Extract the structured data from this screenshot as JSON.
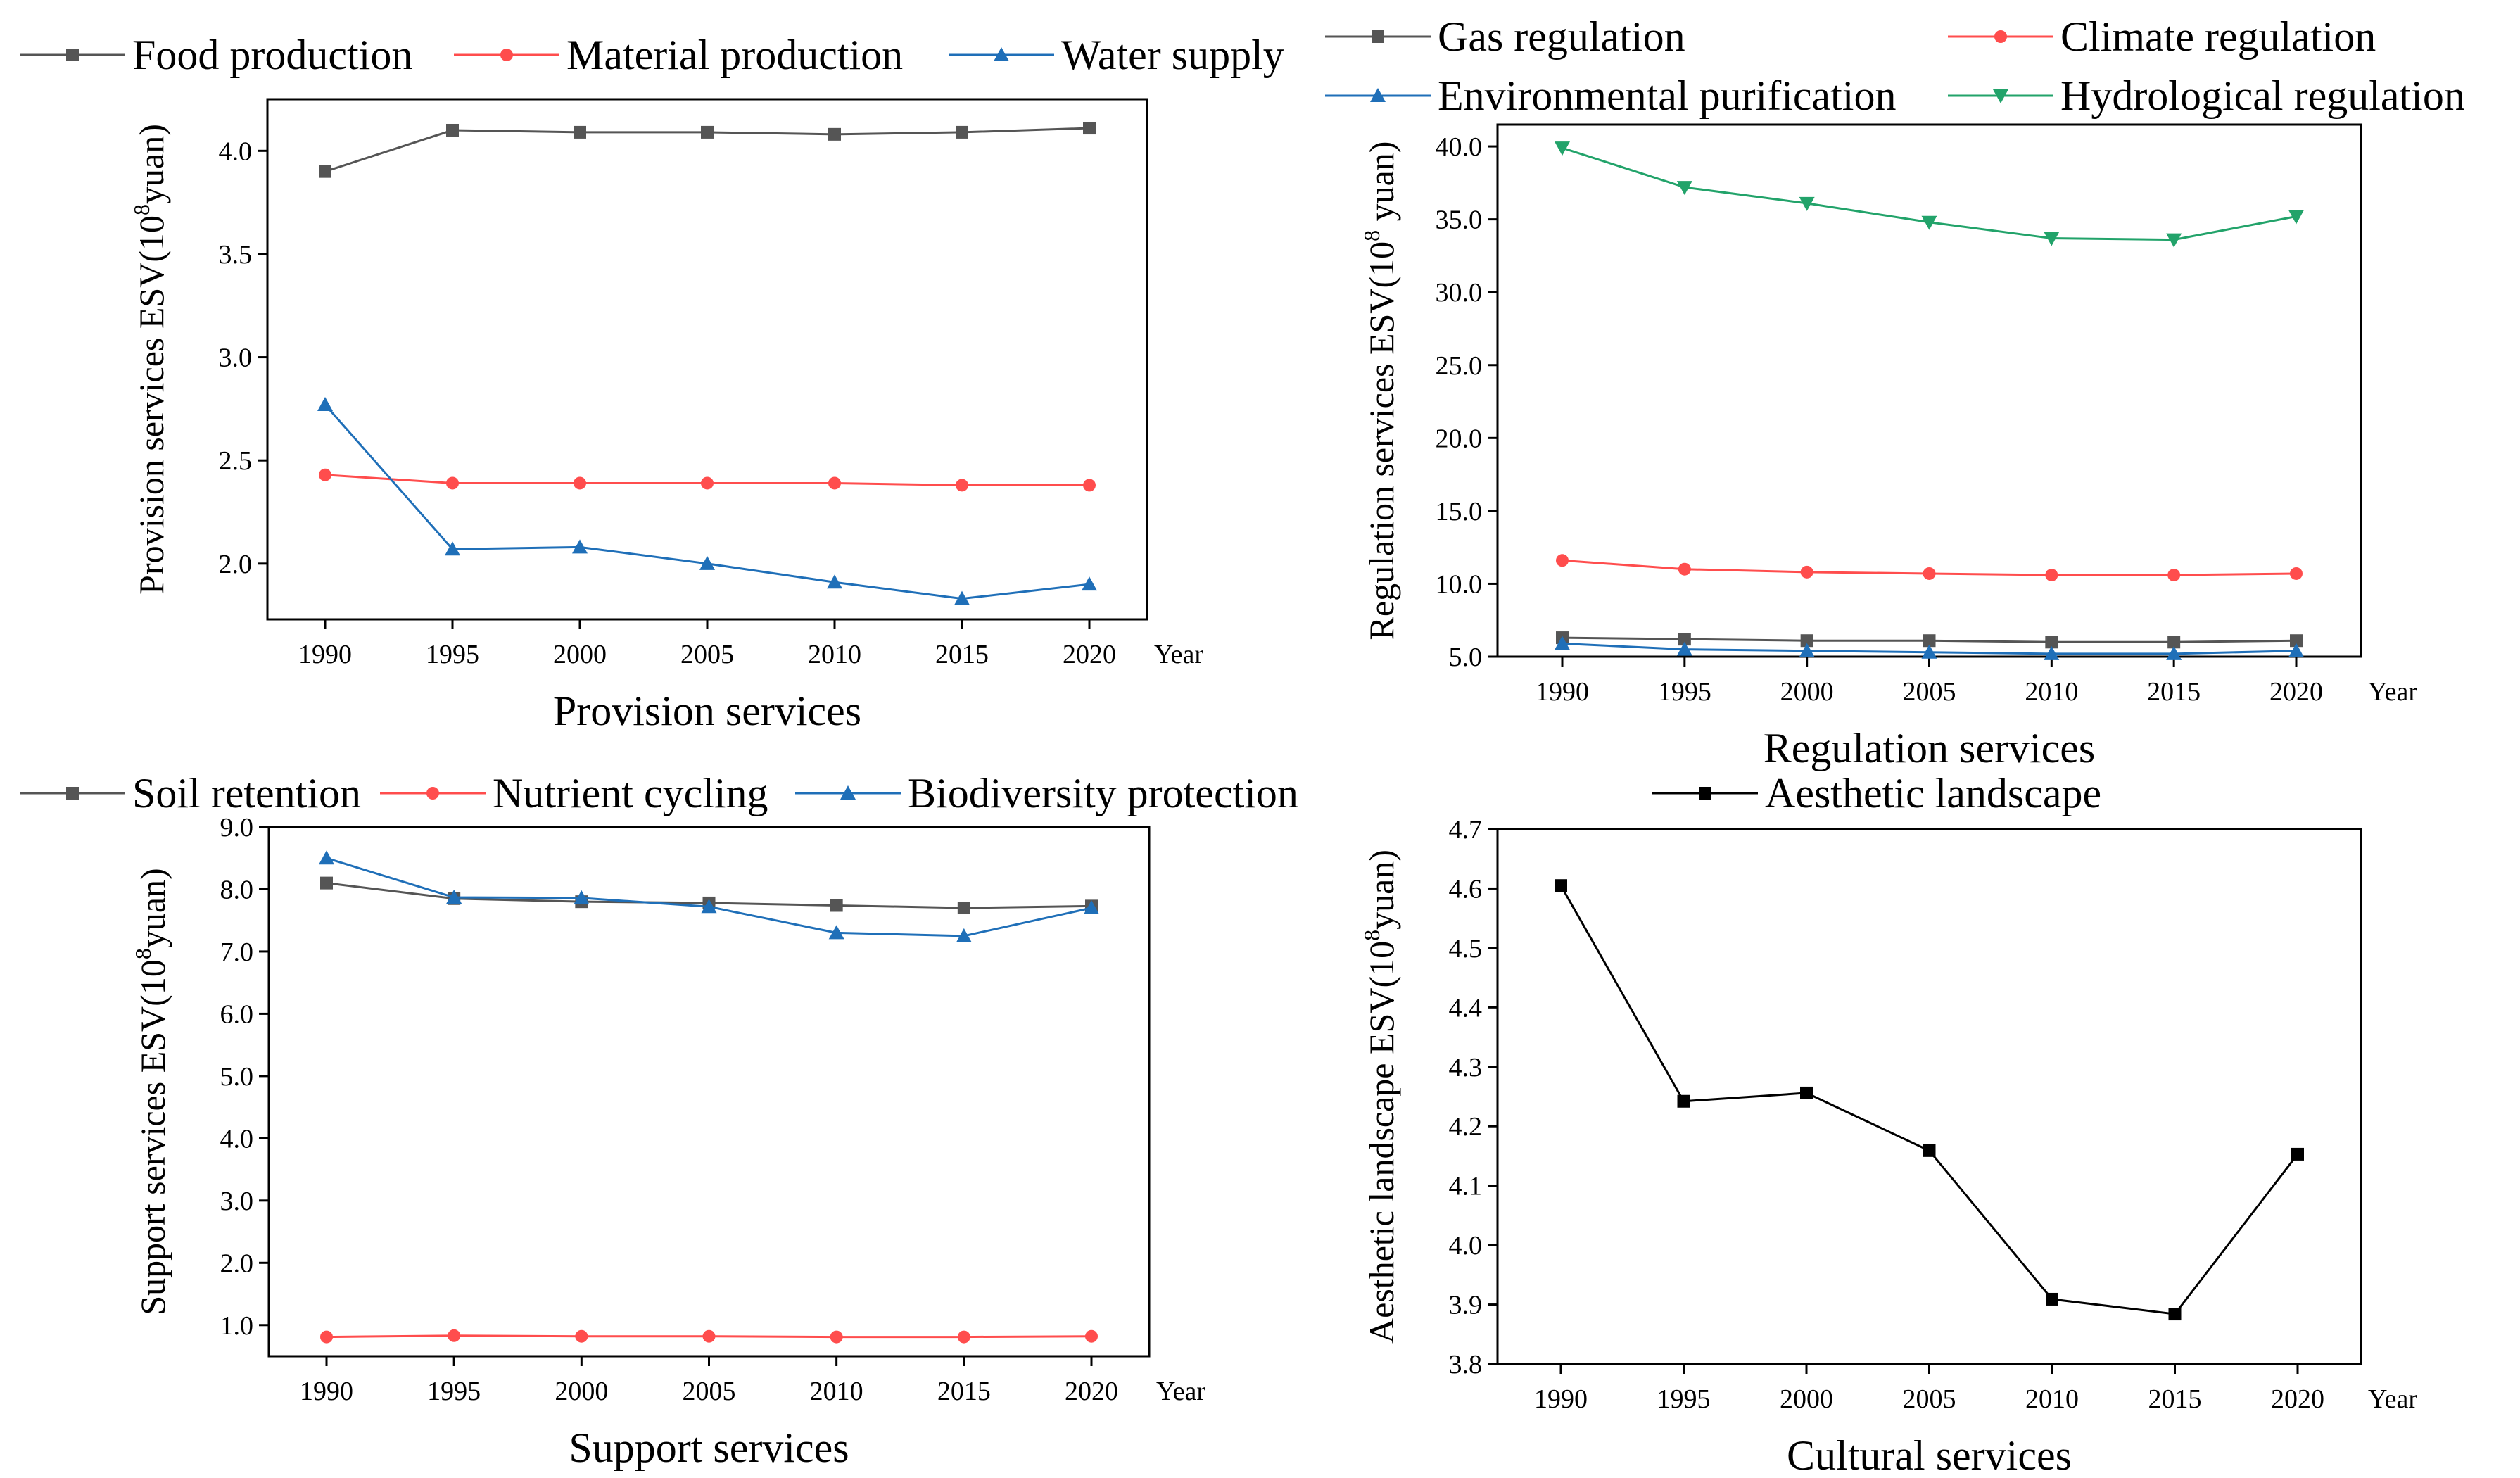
{
  "chart_data": [
    {
      "type": "line",
      "title": "Provision services",
      "xlabel": "Year",
      "ylabel": "Provision services ESV(10⁸yuan)",
      "ylabel_parts": [
        "Provision services ESV(10",
        "8",
        "yuan)"
      ],
      "x": [
        1990,
        1995,
        2000,
        2005,
        2010,
        2015,
        2020
      ],
      "x_tick_labels": [
        "1990",
        "1995",
        "2000",
        "2005",
        "2010",
        "2015",
        "2020"
      ],
      "ylim": [
        1.73,
        4.25
      ],
      "y_ticks": [
        2.0,
        2.5,
        3.0,
        3.5,
        4.0
      ],
      "y_tick_labels": [
        "2.0",
        "2.5",
        "3.0",
        "3.5",
        "4.0"
      ],
      "legend": "top",
      "series": [
        {
          "name": "Food production",
          "color": "#555555",
          "marker": "square",
          "values": [
            3.9,
            4.1,
            4.09,
            4.09,
            4.08,
            4.09,
            4.11
          ]
        },
        {
          "name": "Material production",
          "color": "#ff4d4d",
          "marker": "circle",
          "values": [
            2.43,
            2.39,
            2.39,
            2.39,
            2.39,
            2.38,
            2.38
          ]
        },
        {
          "name": "Water supply",
          "color": "#1f6fb8",
          "marker": "triangle-up",
          "values": [
            2.77,
            2.07,
            2.08,
            2.0,
            1.91,
            1.83,
            1.9
          ]
        }
      ]
    },
    {
      "type": "line",
      "title": "Regulation services",
      "xlabel": "Year",
      "ylabel": "Regulation services ESV(10⁸ yuan)",
      "ylabel_parts": [
        "Regulation services ESV(10",
        "8",
        " yuan)"
      ],
      "x": [
        1990,
        1995,
        2000,
        2005,
        2010,
        2015,
        2020
      ],
      "x_tick_labels": [
        "1990",
        "1995",
        "2000",
        "2005",
        "2010",
        "2015",
        "2020"
      ],
      "ylim": [
        5.0,
        41.5
      ],
      "y_ticks": [
        5.0,
        10.0,
        15.0,
        20.0,
        25.0,
        30.0,
        35.0,
        40.0
      ],
      "y_tick_labels": [
        "5.0",
        "10.0",
        "15.0",
        "20.0",
        "25.0",
        "30.0",
        "35.0",
        "40.0"
      ],
      "legend": "top",
      "series": [
        {
          "name": "Gas regulation",
          "color": "#555555",
          "marker": "square",
          "values": [
            6.3,
            6.2,
            6.1,
            6.1,
            6.0,
            6.0,
            6.1
          ]
        },
        {
          "name": "Climate regulation",
          "color": "#ff4d4d",
          "marker": "circle",
          "values": [
            11.6,
            11.0,
            10.8,
            10.7,
            10.6,
            10.6,
            10.7
          ]
        },
        {
          "name": "Environmental purification",
          "color": "#1f6fb8",
          "marker": "triangle-up",
          "values": [
            5.9,
            5.5,
            5.4,
            5.3,
            5.2,
            5.2,
            5.4
          ]
        },
        {
          "name": "Hydrological regulation",
          "color": "#22a36a",
          "marker": "triangle-down",
          "values": [
            39.9,
            37.2,
            36.1,
            34.8,
            33.7,
            33.6,
            35.2
          ]
        }
      ]
    },
    {
      "type": "line",
      "title": "Support  services",
      "xlabel": "Year",
      "ylabel": "Support  services ESV(10⁸yuan)",
      "ylabel_parts": [
        "Support  services ESV(10",
        "8",
        "yuan)"
      ],
      "x": [
        1990,
        1995,
        2000,
        2005,
        2010,
        2015,
        2020
      ],
      "x_tick_labels": [
        "1990",
        "1995",
        "2000",
        "2005",
        "2010",
        "2015",
        "2020"
      ],
      "ylim": [
        0.5,
        9.0
      ],
      "y_ticks": [
        1.0,
        2.0,
        3.0,
        4.0,
        5.0,
        6.0,
        7.0,
        8.0,
        9.0
      ],
      "y_tick_labels": [
        "1.0",
        "2.0",
        "3.0",
        "4.0",
        "5.0",
        "6.0",
        "7.0",
        "8.0",
        "9.0"
      ],
      "legend": "top",
      "series": [
        {
          "name": "Soil retention",
          "color": "#555555",
          "marker": "square",
          "values": [
            8.1,
            7.85,
            7.8,
            7.78,
            7.74,
            7.7,
            7.73
          ]
        },
        {
          "name": "Nutrient cycling",
          "color": "#ff4d4d",
          "marker": "circle",
          "values": [
            0.81,
            0.83,
            0.82,
            0.82,
            0.81,
            0.81,
            0.82
          ]
        },
        {
          "name": "Biodiversity protection",
          "color": "#1f6fb8",
          "marker": "triangle-up",
          "values": [
            8.5,
            7.87,
            7.86,
            7.72,
            7.3,
            7.25,
            7.7
          ]
        }
      ]
    },
    {
      "type": "line",
      "title": "Cultural services",
      "xlabel": "Year",
      "ylabel": "Aesthetic landscape ESV(10⁸yuan)",
      "ylabel_parts": [
        "Aesthetic landscape ESV(10",
        "8",
        "yuan)"
      ],
      "x": [
        1990,
        1995,
        2000,
        2005,
        2010,
        2015,
        2020
      ],
      "x_tick_labels": [
        "1990",
        "1995",
        "2000",
        "2005",
        "2010",
        "2015",
        "2020"
      ],
      "ylim": [
        3.8,
        4.7
      ],
      "y_ticks": [
        3.8,
        3.9,
        4.0,
        4.1,
        4.2,
        4.3,
        4.4,
        4.5,
        4.6,
        4.7
      ],
      "y_tick_labels": [
        "3.8",
        "3.9",
        "4.0",
        "4.1",
        "4.2",
        "4.3",
        "4.4",
        "4.5",
        "4.6",
        "4.7"
      ],
      "legend": "top",
      "series": [
        {
          "name": "Aesthetic landscape",
          "color": "#000000",
          "marker": "square",
          "values": [
            4.605,
            4.242,
            4.256,
            4.159,
            3.909,
            3.884,
            4.153
          ]
        }
      ]
    }
  ]
}
